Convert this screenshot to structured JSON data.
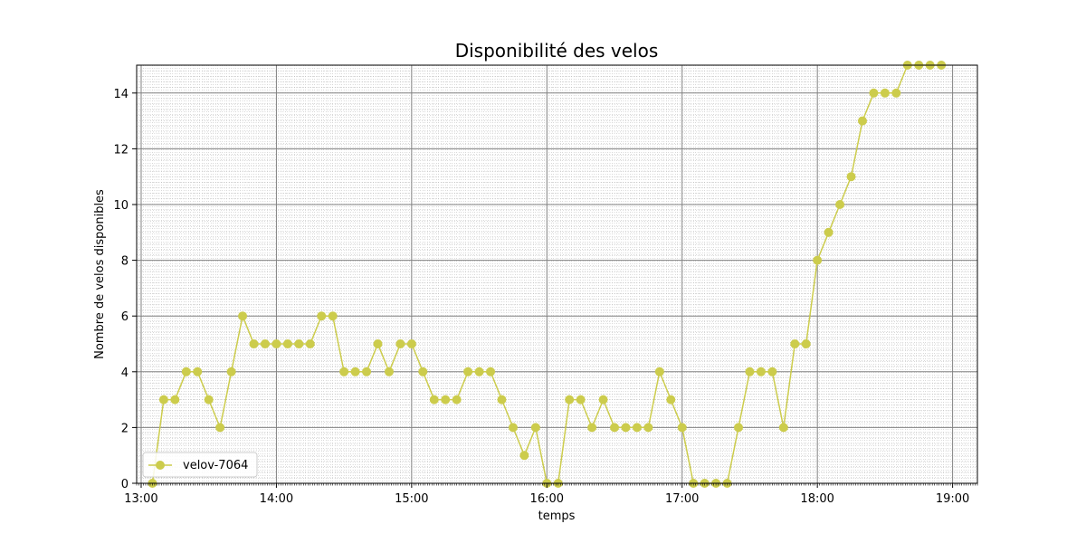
{
  "chart_data": {
    "type": "line",
    "title": "Disponibilité des velos",
    "xlabel": "temps",
    "ylabel": "Nombre de velos disponibles",
    "x_ticks": [
      "13:00",
      "14:00",
      "15:00",
      "16:00",
      "17:00",
      "18:00",
      "19:00"
    ],
    "y_ticks": [
      "0",
      "2",
      "4",
      "6",
      "8",
      "10",
      "12",
      "14"
    ],
    "xlim": [
      "12:58",
      "19:11"
    ],
    "ylim": [
      0,
      15
    ],
    "grid": {
      "major": true,
      "minor": true
    },
    "legend_position": "lower-left",
    "series": [
      {
        "name": "velov-7064",
        "color": "#cccc4c",
        "marker": "circle",
        "x": [
          "13:05",
          "13:10",
          "13:15",
          "13:20",
          "13:25",
          "13:30",
          "13:35",
          "13:40",
          "13:45",
          "13:50",
          "13:55",
          "14:00",
          "14:05",
          "14:10",
          "14:15",
          "14:20",
          "14:25",
          "14:30",
          "14:35",
          "14:40",
          "14:45",
          "14:50",
          "14:55",
          "15:00",
          "15:05",
          "15:10",
          "15:15",
          "15:20",
          "15:25",
          "15:30",
          "15:35",
          "15:40",
          "15:45",
          "15:50",
          "15:55",
          "16:00",
          "16:05",
          "16:10",
          "16:15",
          "16:20",
          "16:25",
          "16:30",
          "16:35",
          "16:40",
          "16:45",
          "16:50",
          "16:55",
          "17:00",
          "17:05",
          "17:10",
          "17:15",
          "17:20",
          "17:25",
          "17:30",
          "17:35",
          "17:40",
          "17:45",
          "17:50",
          "17:55",
          "18:00",
          "18:05",
          "18:10",
          "18:15",
          "18:20",
          "18:25",
          "18:30",
          "18:35",
          "18:40",
          "18:45",
          "18:50",
          "18:55"
        ],
        "values": [
          0,
          3,
          3,
          4,
          4,
          3,
          2,
          4,
          6,
          5,
          5,
          5,
          5,
          5,
          5,
          6,
          6,
          4,
          4,
          4,
          5,
          4,
          5,
          5,
          4,
          3,
          3,
          3,
          4,
          4,
          4,
          3,
          2,
          1,
          2,
          0,
          0,
          3,
          3,
          2,
          3,
          2,
          2,
          2,
          2,
          4,
          3,
          2,
          0,
          0,
          0,
          0,
          2,
          4,
          4,
          4,
          2,
          5,
          5,
          8,
          9,
          10,
          11,
          13,
          14,
          14,
          14,
          15,
          15,
          15,
          15
        ]
      }
    ]
  }
}
